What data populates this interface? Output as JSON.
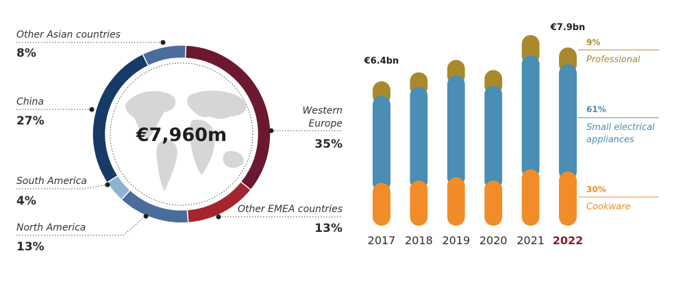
{
  "chart_data": [
    {
      "type": "pie",
      "variant": "donut",
      "center_label": "€7,960m",
      "slices": [
        {
          "label": "Western Europe",
          "label_lines": [
            "Western",
            "Europe"
          ],
          "value": 35,
          "pct_label": "35%",
          "color": "#6b1830"
        },
        {
          "label": "Other EMEA countries",
          "label_lines": [
            "Other EMEA countries"
          ],
          "value": 13,
          "pct_label": "13%",
          "color": "#a3262f"
        },
        {
          "label": "North America",
          "label_lines": [
            "North America"
          ],
          "value": 13,
          "pct_label": "13%",
          "color": "#4a6d9c"
        },
        {
          "label": "South America",
          "label_lines": [
            "South America"
          ],
          "value": 4,
          "pct_label": "4%",
          "color": "#8eb3d2"
        },
        {
          "label": "China",
          "label_lines": [
            "China"
          ],
          "value": 27,
          "pct_label": "27%",
          "color": "#173a67"
        },
        {
          "label": "Other Asian countries",
          "label_lines": [
            "Other Asian countries"
          ],
          "value": 8,
          "pct_label": "8%",
          "color": "#4a6d9c"
        }
      ]
    },
    {
      "type": "bar",
      "stacked": true,
      "categories": [
        "2017",
        "2018",
        "2019",
        "2020",
        "2021",
        "2022"
      ],
      "highlight_category": "2022",
      "totals": [
        6.4,
        6.8,
        7.35,
        6.9,
        8.45,
        7.9
      ],
      "total_labels": {
        "2017": "€6.4bn",
        "2022": "€7.9bn"
      },
      "series": [
        {
          "name": "Cookware",
          "share_label": "30%",
          "color": "#f28c28",
          "values": [
            1.9,
            2.0,
            2.15,
            2.0,
            2.5,
            2.4
          ]
        },
        {
          "name": "Small electrical appliances",
          "share_label": "61%",
          "name_lines": [
            "Small electrical",
            "appliances"
          ],
          "color": "#4a8db5",
          "values": [
            3.85,
            4.15,
            4.5,
            4.2,
            5.05,
            4.75
          ]
        },
        {
          "name": "Professional",
          "share_label": "9%",
          "color": "#a88a2d",
          "values": [
            0.65,
            0.65,
            0.7,
            0.7,
            0.9,
            0.75
          ]
        }
      ]
    }
  ]
}
